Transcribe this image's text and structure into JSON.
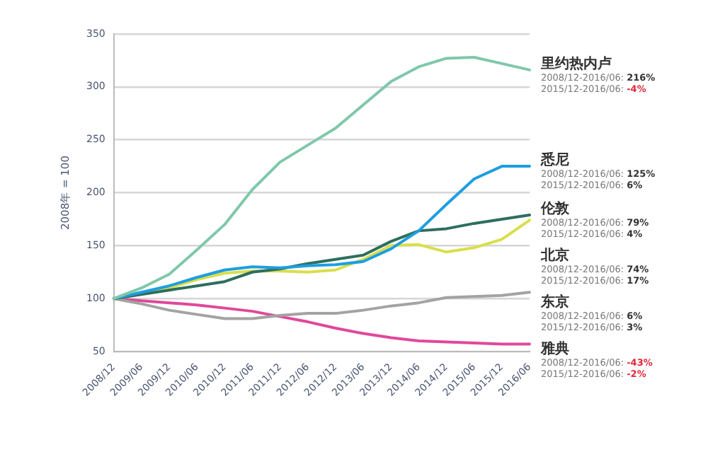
{
  "chart_data": {
    "type": "line",
    "ylabel": "2008年 = 100",
    "categories": [
      "2008/12",
      "2009/06",
      "2009/12",
      "2010/06",
      "2010/12",
      "2011/06",
      "2011/12",
      "2012/06",
      "2012/12",
      "2013/06",
      "2013/12",
      "2014/06",
      "2014/12",
      "2015/06",
      "2015/12",
      "2016/06"
    ],
    "series": [
      {
        "name": "里约热内卢",
        "color": "#7fc8a9",
        "values": [
          100,
          110,
          123,
          146,
          170,
          203,
          229,
          245,
          261,
          283,
          305,
          319,
          327,
          328,
          322,
          316
        ]
      },
      {
        "name": "悉尼",
        "color": "#1e9ee0",
        "values": [
          100,
          106,
          112,
          120,
          127,
          130,
          129,
          131,
          132,
          135,
          147,
          164,
          189,
          213,
          225,
          225
        ]
      },
      {
        "name": "伦敦",
        "color": "#2e6e5e",
        "values": [
          100,
          104,
          108,
          112,
          116,
          125,
          128,
          133,
          137,
          141,
          154,
          164,
          166,
          171,
          175,
          179
        ]
      },
      {
        "name": "北京",
        "color": "#d8df4a",
        "values": [
          100,
          105,
          110,
          118,
          124,
          126,
          126,
          125,
          127,
          137,
          150,
          151,
          144,
          148,
          156,
          174
        ]
      },
      {
        "name": "东京",
        "color": "#a3a3a3",
        "values": [
          100,
          95,
          89,
          85,
          81,
          81,
          84,
          86,
          86,
          89,
          93,
          96,
          101,
          102,
          103,
          106
        ]
      },
      {
        "name": "雅典",
        "color": "#e0489a",
        "values": [
          100,
          98,
          96,
          94,
          91,
          88,
          83,
          78,
          72,
          67,
          63,
          60,
          59,
          58,
          57,
          57
        ]
      }
    ],
    "annotations": [
      "2008/12-2016/06: 216%",
      "2015/12-2016/06: -4%",
      "2008/12-2016/06: 125%",
      "2015/12-2016/06: 6%",
      "2008/12-2016/06: 79%",
      "2015/12-2016/06: 4%",
      "2008/12-2016/06: 74%",
      "2015/12-2016/06: 17%",
      "2008/12-2016/06: 6%",
      "2015/12-2016/06: 3%",
      "2008/12-2016/06: -43%",
      "2015/12-2016/06: -2%"
    ],
    "ylim": [
      50,
      350
    ],
    "yticks": [
      50,
      100,
      150,
      200,
      250,
      300,
      350
    ],
    "grid": "y",
    "marker": "none",
    "line_style": "solid"
  }
}
